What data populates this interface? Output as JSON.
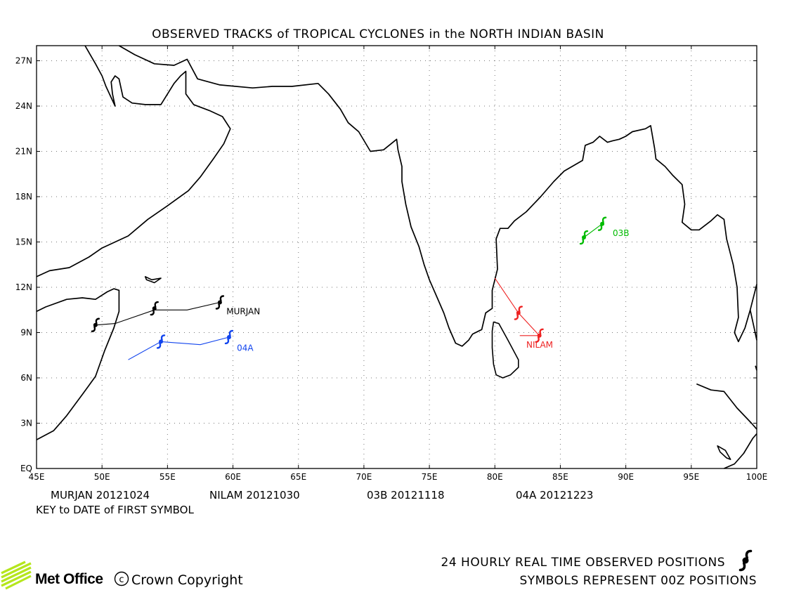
{
  "title": "OBSERVED TRACKS of TROPICAL CYCLONES in the NORTH INDIAN BASIN",
  "axes": {
    "x_ticks": [
      "45E",
      "50E",
      "55E",
      "60E",
      "65E",
      "70E",
      "75E",
      "80E",
      "85E",
      "90E",
      "95E",
      "100E"
    ],
    "y_ticks": [
      "EQ",
      "3N",
      "6N",
      "9N",
      "12N",
      "15N",
      "18N",
      "21N",
      "24N",
      "27N"
    ],
    "lon_range": [
      45,
      100
    ],
    "lat_range": [
      0,
      28
    ],
    "grid": true
  },
  "key": {
    "entries": [
      {
        "name": "MURJAN",
        "date": "20121024",
        "text": "MURJAN 20121024"
      },
      {
        "name": "NILAM",
        "date": "20121030",
        "text": "NILAM 20121030"
      },
      {
        "name": "03B",
        "date": "20121118",
        "text": "03B 20121118"
      },
      {
        "name": "04A",
        "date": "20121223",
        "text": "04A 20121223"
      }
    ],
    "caption": "KEY to DATE of FIRST SYMBOL"
  },
  "chart_data": {
    "type": "map",
    "x_axis": "longitude (degrees E)",
    "y_axis": "latitude (degrees N)",
    "xlim": [
      45,
      100
    ],
    "ylim": [
      0,
      28
    ],
    "grid": true,
    "tracks": [
      {
        "name": "MURJAN",
        "color": "#000000",
        "line": [
          [
            59.0,
            11.0
          ],
          [
            56.5,
            10.5
          ],
          [
            54.0,
            10.5
          ],
          [
            51.0,
            9.6
          ],
          [
            49.5,
            9.5
          ]
        ],
        "symbols": [
          [
            59.0,
            11.0
          ],
          [
            54.0,
            10.6
          ],
          [
            49.5,
            9.5
          ]
        ]
      },
      {
        "name": "NILAM",
        "color": "#ee2222",
        "line": [
          [
            80.0,
            12.6
          ],
          [
            81.8,
            10.3
          ],
          [
            83.4,
            8.8
          ],
          [
            81.9,
            8.8
          ]
        ],
        "symbols": [
          [
            81.8,
            10.3
          ],
          [
            83.4,
            8.8
          ]
        ]
      },
      {
        "name": "03B",
        "color": "#00bb00",
        "line": [
          [
            86.8,
            15.3
          ],
          [
            88.2,
            16.2
          ]
        ],
        "symbols": [
          [
            86.8,
            15.3
          ],
          [
            88.2,
            16.2
          ]
        ]
      },
      {
        "name": "04A",
        "color": "#1144ee",
        "line": [
          [
            59.7,
            8.7
          ],
          [
            57.5,
            8.2
          ],
          [
            54.5,
            8.4
          ],
          [
            52.0,
            7.2
          ]
        ],
        "symbols": [
          [
            59.7,
            8.7
          ],
          [
            54.5,
            8.4
          ]
        ]
      }
    ],
    "track_labels": [
      {
        "text": "MURJAN",
        "lon": 59.5,
        "lat": 10.2,
        "color": "#000000"
      },
      {
        "text": "NILAM",
        "lon": 82.4,
        "lat": 8.0,
        "color": "#ee2222"
      },
      {
        "text": "03B",
        "lon": 89.0,
        "lat": 15.4,
        "color": "#00bb00"
      },
      {
        "text": "04A",
        "lon": 60.3,
        "lat": 7.8,
        "color": "#1144ee"
      }
    ],
    "coastlines": [
      [
        [
          45,
          12.7
        ],
        [
          46,
          13.1
        ],
        [
          47.5,
          13.3
        ],
        [
          49,
          14.0
        ],
        [
          50,
          14.6
        ],
        [
          52,
          15.4
        ],
        [
          53.5,
          16.5
        ],
        [
          55,
          17.4
        ],
        [
          56.6,
          18.4
        ],
        [
          57.5,
          19.3
        ],
        [
          58.5,
          20.5
        ],
        [
          59.3,
          21.5
        ],
        [
          59.8,
          22.5
        ],
        [
          59.2,
          23.3
        ],
        [
          58.2,
          23.7
        ],
        [
          57,
          24.1
        ],
        [
          56.4,
          24.8
        ],
        [
          56.4,
          26.3
        ],
        [
          56.0,
          26.0
        ],
        [
          55.5,
          25.5
        ],
        [
          54.5,
          24.1
        ],
        [
          53.3,
          24.1
        ],
        [
          52.3,
          24.2
        ],
        [
          51.6,
          24.6
        ],
        [
          51.3,
          25.8
        ],
        [
          51.0,
          26.0
        ],
        [
          50.7,
          25.6
        ],
        [
          50.8,
          24.8
        ],
        [
          51.0,
          24.0
        ],
        [
          50.3,
          25.3
        ],
        [
          50.0,
          26.0
        ],
        [
          49.5,
          26.8
        ],
        [
          48.7,
          28.0
        ]
      ],
      [
        [
          51.3,
          28.0
        ],
        [
          52.5,
          27.4
        ],
        [
          54,
          26.8
        ],
        [
          55.5,
          26.7
        ],
        [
          56.5,
          27.1
        ],
        [
          57.3,
          25.8
        ],
        [
          59,
          25.4
        ],
        [
          61.5,
          25.2
        ],
        [
          63,
          25.3
        ],
        [
          64.5,
          25.3
        ],
        [
          66.5,
          25.5
        ],
        [
          67.3,
          24.8
        ],
        [
          68.2,
          23.8
        ],
        [
          68.8,
          22.9
        ],
        [
          69.6,
          22.3
        ],
        [
          70.5,
          21.0
        ],
        [
          71.5,
          21.1
        ],
        [
          72.5,
          21.8
        ],
        [
          72.6,
          21.1
        ],
        [
          72.9,
          20.0
        ],
        [
          72.9,
          19.0
        ],
        [
          73.2,
          17.5
        ],
        [
          73.6,
          16.0
        ],
        [
          74.2,
          14.7
        ],
        [
          74.6,
          13.5
        ],
        [
          75.0,
          12.5
        ],
        [
          75.6,
          11.3
        ],
        [
          76.1,
          10.3
        ],
        [
          76.5,
          9.3
        ],
        [
          77.0,
          8.3
        ],
        [
          77.5,
          8.1
        ],
        [
          78.0,
          8.5
        ],
        [
          78.3,
          8.9
        ],
        [
          79.0,
          9.2
        ],
        [
          79.3,
          10.3
        ],
        [
          79.8,
          10.6
        ],
        [
          79.8,
          11.8
        ],
        [
          80.2,
          13.2
        ],
        [
          80.1,
          15.2
        ],
        [
          80.4,
          15.9
        ],
        [
          81.0,
          15.9
        ],
        [
          81.5,
          16.4
        ],
        [
          82.4,
          17.0
        ],
        [
          83.5,
          18.0
        ],
        [
          84.5,
          19.0
        ],
        [
          85.3,
          19.7
        ],
        [
          86.7,
          20.4
        ],
        [
          86.9,
          21.4
        ],
        [
          87.5,
          21.6
        ],
        [
          88.0,
          22.0
        ],
        [
          88.6,
          21.6
        ],
        [
          89.0,
          21.7
        ],
        [
          89.5,
          21.8
        ],
        [
          90.0,
          22.0
        ],
        [
          90.5,
          22.3
        ],
        [
          91.5,
          22.5
        ],
        [
          91.9,
          22.7
        ],
        [
          92.2,
          21.2
        ],
        [
          92.3,
          20.5
        ],
        [
          93.0,
          20.0
        ],
        [
          93.6,
          19.4
        ],
        [
          94.3,
          18.8
        ],
        [
          94.5,
          17.5
        ],
        [
          94.3,
          16.3
        ],
        [
          95.0,
          15.8
        ],
        [
          95.6,
          15.8
        ],
        [
          96.5,
          16.4
        ],
        [
          97.0,
          16.8
        ],
        [
          97.5,
          16.5
        ],
        [
          97.7,
          15.2
        ],
        [
          98.2,
          13.5
        ],
        [
          98.5,
          12.0
        ],
        [
          98.6,
          10.0
        ],
        [
          98.3,
          9.0
        ],
        [
          98.6,
          8.4
        ],
        [
          99.1,
          9.3
        ],
        [
          99.5,
          10.5
        ],
        [
          100,
          12.2
        ]
      ],
      [
        [
          100,
          8.5
        ],
        [
          99.8,
          9.3
        ],
        [
          99.5,
          10.5
        ]
      ],
      [
        [
          99.9,
          6.8
        ],
        [
          100,
          6.5
        ]
      ],
      [
        [
          45,
          1.9
        ],
        [
          46.3,
          2.5
        ],
        [
          47.3,
          3.5
        ],
        [
          48.5,
          4.9
        ],
        [
          49.5,
          6.1
        ],
        [
          50.2,
          7.8
        ],
        [
          50.9,
          9.3
        ],
        [
          51.3,
          10.4
        ],
        [
          51.3,
          11.8
        ],
        [
          50.9,
          11.9
        ],
        [
          50.4,
          11.7
        ],
        [
          49.5,
          11.2
        ],
        [
          48.5,
          11.3
        ],
        [
          47.3,
          11.2
        ],
        [
          45.7,
          10.7
        ],
        [
          45,
          10.4
        ]
      ],
      [
        [
          97.5,
          0.0
        ],
        [
          98.3,
          0.3
        ],
        [
          99.0,
          1.0
        ],
        [
          99.7,
          2.0
        ],
        [
          100,
          2.3
        ]
      ],
      [
        [
          95.4,
          5.6
        ],
        [
          96.5,
          5.2
        ],
        [
          97.5,
          5.1
        ],
        [
          98.5,
          4.0
        ],
        [
          99.6,
          3.0
        ],
        [
          100,
          2.6
        ]
      ]
    ],
    "islands": [
      [
        [
          79.9,
          9.7
        ],
        [
          80.3,
          9.6
        ],
        [
          81.0,
          8.5
        ],
        [
          81.8,
          7.2
        ],
        [
          81.8,
          6.7
        ],
        [
          81.2,
          6.2
        ],
        [
          80.6,
          6.0
        ],
        [
          80.1,
          6.2
        ],
        [
          79.9,
          6.9
        ],
        [
          79.8,
          8.0
        ],
        [
          79.8,
          9.1
        ],
        [
          79.9,
          9.7
        ]
      ],
      [
        [
          53.3,
          12.7
        ],
        [
          53.8,
          12.5
        ],
        [
          54.5,
          12.6
        ],
        [
          54.0,
          12.3
        ],
        [
          53.4,
          12.5
        ],
        [
          53.3,
          12.7
        ]
      ],
      [
        [
          97.0,
          1.5
        ],
        [
          97.6,
          1.2
        ],
        [
          98.0,
          0.6
        ],
        [
          97.7,
          0.7
        ],
        [
          97.2,
          1.1
        ],
        [
          97.0,
          1.5
        ]
      ]
    ]
  },
  "footer": {
    "legend_line1": "24 HOURLY REAL TIME OBSERVED POSITIONS",
    "legend_line2": "SYMBOLS REPRESENT 00Z POSITIONS",
    "brand": "Met Office",
    "copyright": "Crown Copyright",
    "copyright_symbol": "©",
    "brand_color": "#b5e61d"
  }
}
